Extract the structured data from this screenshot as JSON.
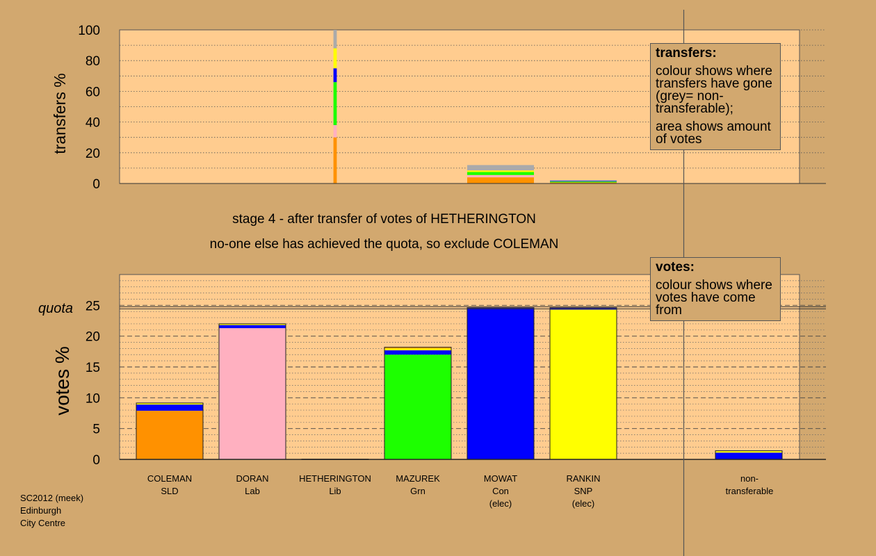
{
  "captions": {
    "stage": "stage 4 - after transfer of votes of HETHERINGTON",
    "decision": "no-one else has achieved the quota, so exclude COLEMAN"
  },
  "legend_transfers": {
    "title": "transfers:",
    "line1": "colour shows where transfers have gone (grey= non-transferable);",
    "line2": "area shows amount of votes"
  },
  "legend_votes": {
    "title": "votes:",
    "line1": "colour shows where votes have come from"
  },
  "footer": {
    "line1": "SC2012 (meek)",
    "line2": "Edinburgh",
    "line3": "City Centre"
  },
  "colors": {
    "background": "#d2a86f",
    "panel": "#ffcc8f",
    "COLEMAN": "#ff9100",
    "DORAN": "#ffb0c0",
    "HETHERINGTON": "#ffa500",
    "MAZUREK": "#1dff00",
    "MOWAT": "#0000ff",
    "RANKIN": "#ffff00",
    "non-transferable": "#aaaaaa"
  },
  "candidates": [
    {
      "name": "COLEMAN",
      "party": "SLD",
      "status": ""
    },
    {
      "name": "DORAN",
      "party": "Lab",
      "status": ""
    },
    {
      "name": "HETHERINGTON",
      "party": "Lib",
      "status": ""
    },
    {
      "name": "MAZUREK",
      "party": "Grn",
      "status": ""
    },
    {
      "name": "MOWAT",
      "party": "Con",
      "status": "(elec)"
    },
    {
      "name": "RANKIN",
      "party": "SNP",
      "status": "(elec)"
    },
    {
      "name": "non-",
      "party": "transferable",
      "status": ""
    }
  ],
  "chart_data": [
    {
      "type": "bar",
      "ylabel": "transfers %",
      "ylim": [
        0,
        100
      ],
      "yticks": [
        0,
        20,
        40,
        60,
        80,
        100
      ],
      "grid": "dotted",
      "bars": [
        {
          "candidate": "HETHERINGTON",
          "width_share": 0.05,
          "segments": [
            {
              "to": "COLEMAN",
              "value": 30
            },
            {
              "to": "DORAN",
              "value": 8
            },
            {
              "to": "MAZUREK",
              "value": 28
            },
            {
              "to": "MOWAT",
              "value": 9
            },
            {
              "to": "RANKIN",
              "value": 13
            },
            {
              "to": "non-transferable",
              "value": 12
            }
          ]
        },
        {
          "candidate": "MOWAT",
          "width_share": 1,
          "segments": [
            {
              "to": "COLEMAN",
              "value": 4
            },
            {
              "to": "DORAN",
              "value": 1.5
            },
            {
              "to": "MAZUREK",
              "value": 2
            },
            {
              "to": "RANKIN",
              "value": 1
            },
            {
              "to": "non-transferable",
              "value": 3.5
            }
          ]
        },
        {
          "candidate": "RANKIN",
          "width_share": 1,
          "segments": [
            {
              "to": "COLEMAN",
              "value": 0.7
            },
            {
              "to": "MAZUREK",
              "value": 0.6
            },
            {
              "to": "MOWAT",
              "value": 0.3
            },
            {
              "to": "non-transferable",
              "value": 0.6
            }
          ]
        }
      ]
    },
    {
      "type": "bar",
      "ylabel": "votes %",
      "ylim": [
        0,
        30
      ],
      "yticks": [
        0,
        5,
        10,
        15,
        20,
        25
      ],
      "quota": 24.6,
      "quota_label": "quota",
      "grid": "dashed",
      "bars": [
        {
          "candidate": "COLEMAN",
          "segments": [
            {
              "from": "COLEMAN",
              "value": 7.9
            },
            {
              "from": "MOWAT",
              "value": 1.0
            },
            {
              "from": "RANKIN",
              "value": 0.25
            }
          ]
        },
        {
          "candidate": "DORAN",
          "segments": [
            {
              "from": "DORAN",
              "value": 21.3
            },
            {
              "from": "MOWAT",
              "value": 0.5
            },
            {
              "from": "RANKIN",
              "value": 0.2
            }
          ]
        },
        {
          "candidate": "HETHERINGTON",
          "segments": [
            {
              "from": "HETHERINGTON",
              "value": 0.05
            }
          ]
        },
        {
          "candidate": "MAZUREK",
          "segments": [
            {
              "from": "MAZUREK",
              "value": 17.0
            },
            {
              "from": "MOWAT",
              "value": 0.7
            },
            {
              "from": "RANKIN",
              "value": 0.3
            },
            {
              "from": "HETHERINGTON",
              "value": 0.2
            }
          ]
        },
        {
          "candidate": "MOWAT",
          "segments": [
            {
              "from": "MOWAT",
              "value": 24.6
            }
          ]
        },
        {
          "candidate": "RANKIN",
          "segments": [
            {
              "from": "RANKIN",
              "value": 24.3
            },
            {
              "from": "MOWAT",
              "value": 0.3
            }
          ]
        },
        {
          "candidate": "non-transferable",
          "segments": [
            {
              "from": "MOWAT",
              "value": 1.1
            },
            {
              "from": "RANKIN",
              "value": 0.3
            }
          ]
        }
      ]
    }
  ]
}
